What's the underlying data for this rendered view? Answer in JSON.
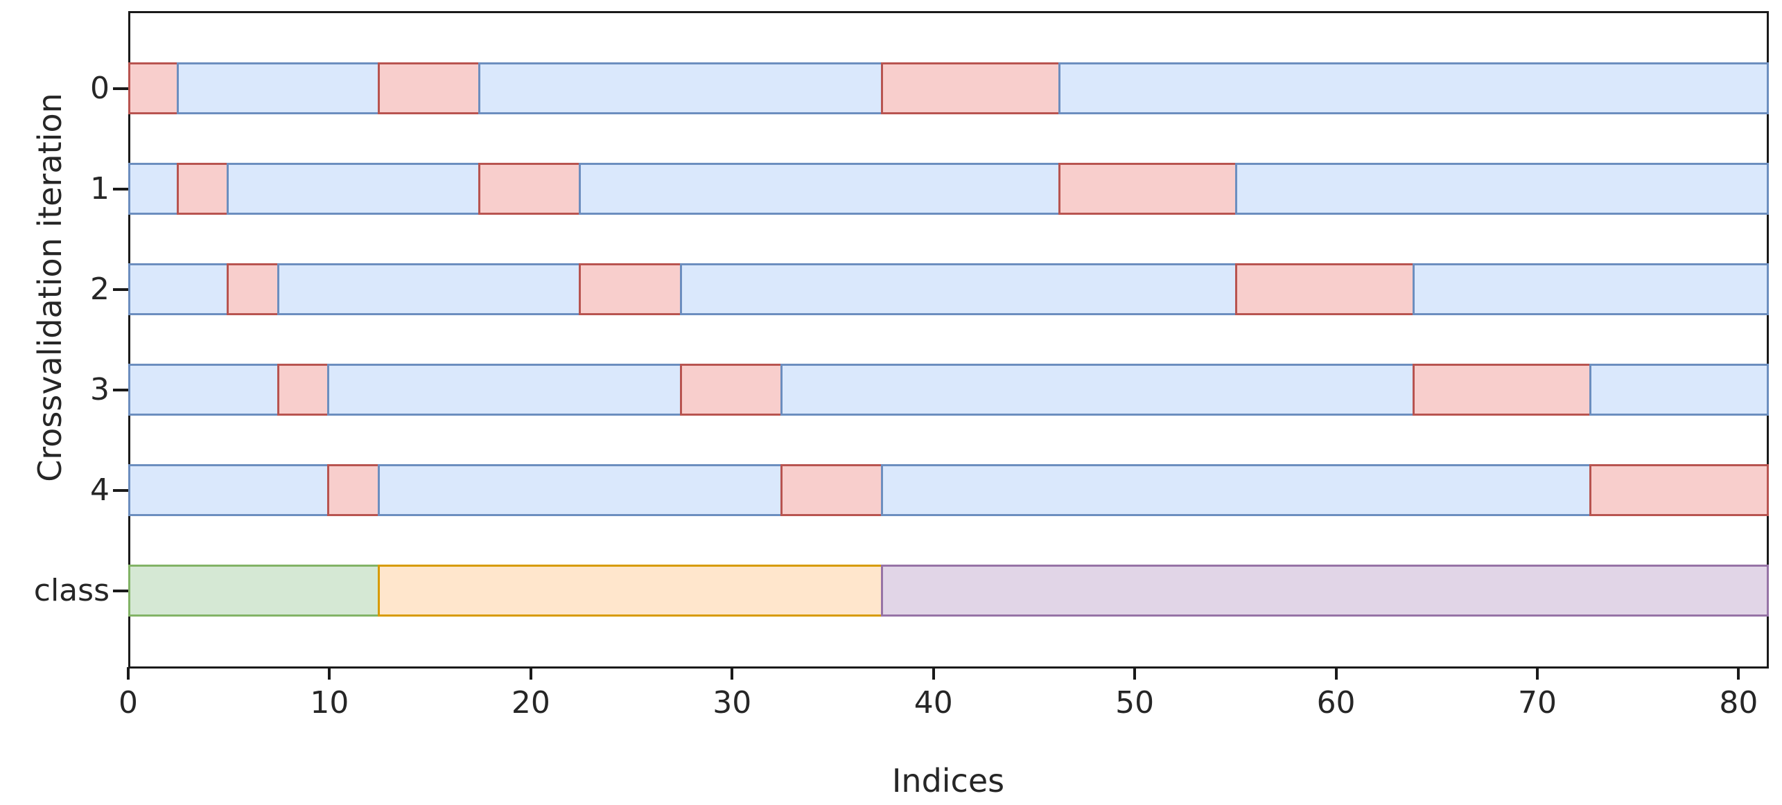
{
  "chart_data": {
    "type": "bar",
    "subtype": "cross-validation-indices",
    "title": "",
    "xlabel": "Indices",
    "ylabel": "Crossvalidation iteration",
    "xlim": [
      0,
      81.5
    ],
    "x_ticks": [
      0,
      10,
      20,
      30,
      40,
      50,
      60,
      70,
      80
    ],
    "grid": false,
    "legend": "none",
    "row_labels": [
      "0",
      "1",
      "2",
      "3",
      "4",
      "class"
    ],
    "rows": [
      {
        "label": "0",
        "segments": [
          {
            "from": 0,
            "to": 2.5,
            "role": "test"
          },
          {
            "from": 2.5,
            "to": 12.5,
            "role": "train"
          },
          {
            "from": 12.5,
            "to": 17.5,
            "role": "test"
          },
          {
            "from": 17.5,
            "to": 37.5,
            "role": "train"
          },
          {
            "from": 37.5,
            "to": 46.3,
            "role": "test"
          },
          {
            "from": 46.3,
            "to": 81.5,
            "role": "train"
          }
        ]
      },
      {
        "label": "1",
        "segments": [
          {
            "from": 0,
            "to": 2.5,
            "role": "train"
          },
          {
            "from": 2.5,
            "to": 5.0,
            "role": "test"
          },
          {
            "from": 5.0,
            "to": 17.5,
            "role": "train"
          },
          {
            "from": 17.5,
            "to": 22.5,
            "role": "test"
          },
          {
            "from": 22.5,
            "to": 46.3,
            "role": "train"
          },
          {
            "from": 46.3,
            "to": 55.1,
            "role": "test"
          },
          {
            "from": 55.1,
            "to": 81.5,
            "role": "train"
          }
        ]
      },
      {
        "label": "2",
        "segments": [
          {
            "from": 0,
            "to": 5.0,
            "role": "train"
          },
          {
            "from": 5.0,
            "to": 7.5,
            "role": "test"
          },
          {
            "from": 7.5,
            "to": 22.5,
            "role": "train"
          },
          {
            "from": 22.5,
            "to": 27.5,
            "role": "test"
          },
          {
            "from": 27.5,
            "to": 55.1,
            "role": "train"
          },
          {
            "from": 55.1,
            "to": 63.9,
            "role": "test"
          },
          {
            "from": 63.9,
            "to": 81.5,
            "role": "train"
          }
        ]
      },
      {
        "label": "3",
        "segments": [
          {
            "from": 0,
            "to": 7.5,
            "role": "train"
          },
          {
            "from": 7.5,
            "to": 10.0,
            "role": "test"
          },
          {
            "from": 10.0,
            "to": 27.5,
            "role": "train"
          },
          {
            "from": 27.5,
            "to": 32.5,
            "role": "test"
          },
          {
            "from": 32.5,
            "to": 63.9,
            "role": "train"
          },
          {
            "from": 63.9,
            "to": 72.7,
            "role": "test"
          },
          {
            "from": 72.7,
            "to": 81.5,
            "role": "train"
          }
        ]
      },
      {
        "label": "4",
        "segments": [
          {
            "from": 0,
            "to": 10.0,
            "role": "train"
          },
          {
            "from": 10.0,
            "to": 12.5,
            "role": "test"
          },
          {
            "from": 12.5,
            "to": 32.5,
            "role": "train"
          },
          {
            "from": 32.5,
            "to": 37.5,
            "role": "test"
          },
          {
            "from": 37.5,
            "to": 72.7,
            "role": "train"
          },
          {
            "from": 72.7,
            "to": 81.5,
            "role": "test"
          }
        ]
      },
      {
        "label": "class",
        "segments": [
          {
            "from": 0,
            "to": 12.5,
            "role": "class0"
          },
          {
            "from": 12.5,
            "to": 37.5,
            "role": "class1"
          },
          {
            "from": 37.5,
            "to": 81.5,
            "role": "class2"
          }
        ]
      }
    ],
    "colors": {
      "train": {
        "fill": "#dae8fc",
        "stroke": "#6c8ebf"
      },
      "test": {
        "fill": "#f8cecc",
        "stroke": "#b85450"
      },
      "class0": {
        "fill": "#d5e8d4",
        "stroke": "#82b366"
      },
      "class1": {
        "fill": "#ffe6cc",
        "stroke": "#d79b00"
      },
      "class2": {
        "fill": "#e1d5e7",
        "stroke": "#9673a6"
      },
      "axis": "#1a1a1a",
      "text": "#262626"
    }
  }
}
